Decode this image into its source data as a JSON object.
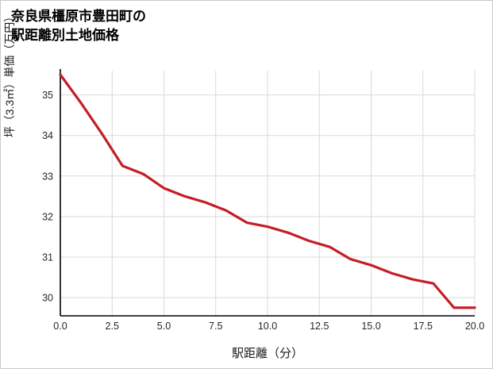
{
  "chart_data": {
    "type": "line",
    "title_line1": "奈良県橿原市豊田町の",
    "title_line2": "駅距離別土地価格",
    "xlabel": "駅距離（分）",
    "ylabel": "坪（3.3㎡）単価（万円）",
    "x": [
      0,
      1,
      2,
      3,
      4,
      5,
      6,
      7,
      8,
      9,
      10,
      11,
      12,
      13,
      14,
      15,
      16,
      17,
      18,
      19,
      20
    ],
    "y": [
      35.5,
      34.8,
      34.05,
      33.25,
      33.05,
      32.7,
      32.5,
      32.35,
      32.15,
      31.85,
      31.75,
      31.6,
      31.4,
      31.25,
      30.95,
      30.8,
      30.6,
      30.45,
      30.35,
      29.75,
      29.75
    ],
    "xticks": [
      0,
      2.5,
      5,
      7.5,
      10,
      12.5,
      15,
      17.5,
      20
    ],
    "xtick_labels": [
      "0.0",
      "2.5",
      "5.0",
      "7.5",
      "10.0",
      "12.5",
      "15.0",
      "17.5",
      "20.0"
    ],
    "yticks": [
      30,
      31,
      32,
      33,
      34,
      35
    ],
    "ytick_labels": [
      "30",
      "31",
      "32",
      "33",
      "34",
      "35"
    ],
    "xlim": [
      0,
      20
    ],
    "ylim": [
      29.55,
      35.6
    ],
    "grid": true,
    "legend": "none",
    "line_color": "#c41e27",
    "grid_color": "#d9d9d9",
    "spine_color": "#000000",
    "tick_color": "#262626"
  }
}
